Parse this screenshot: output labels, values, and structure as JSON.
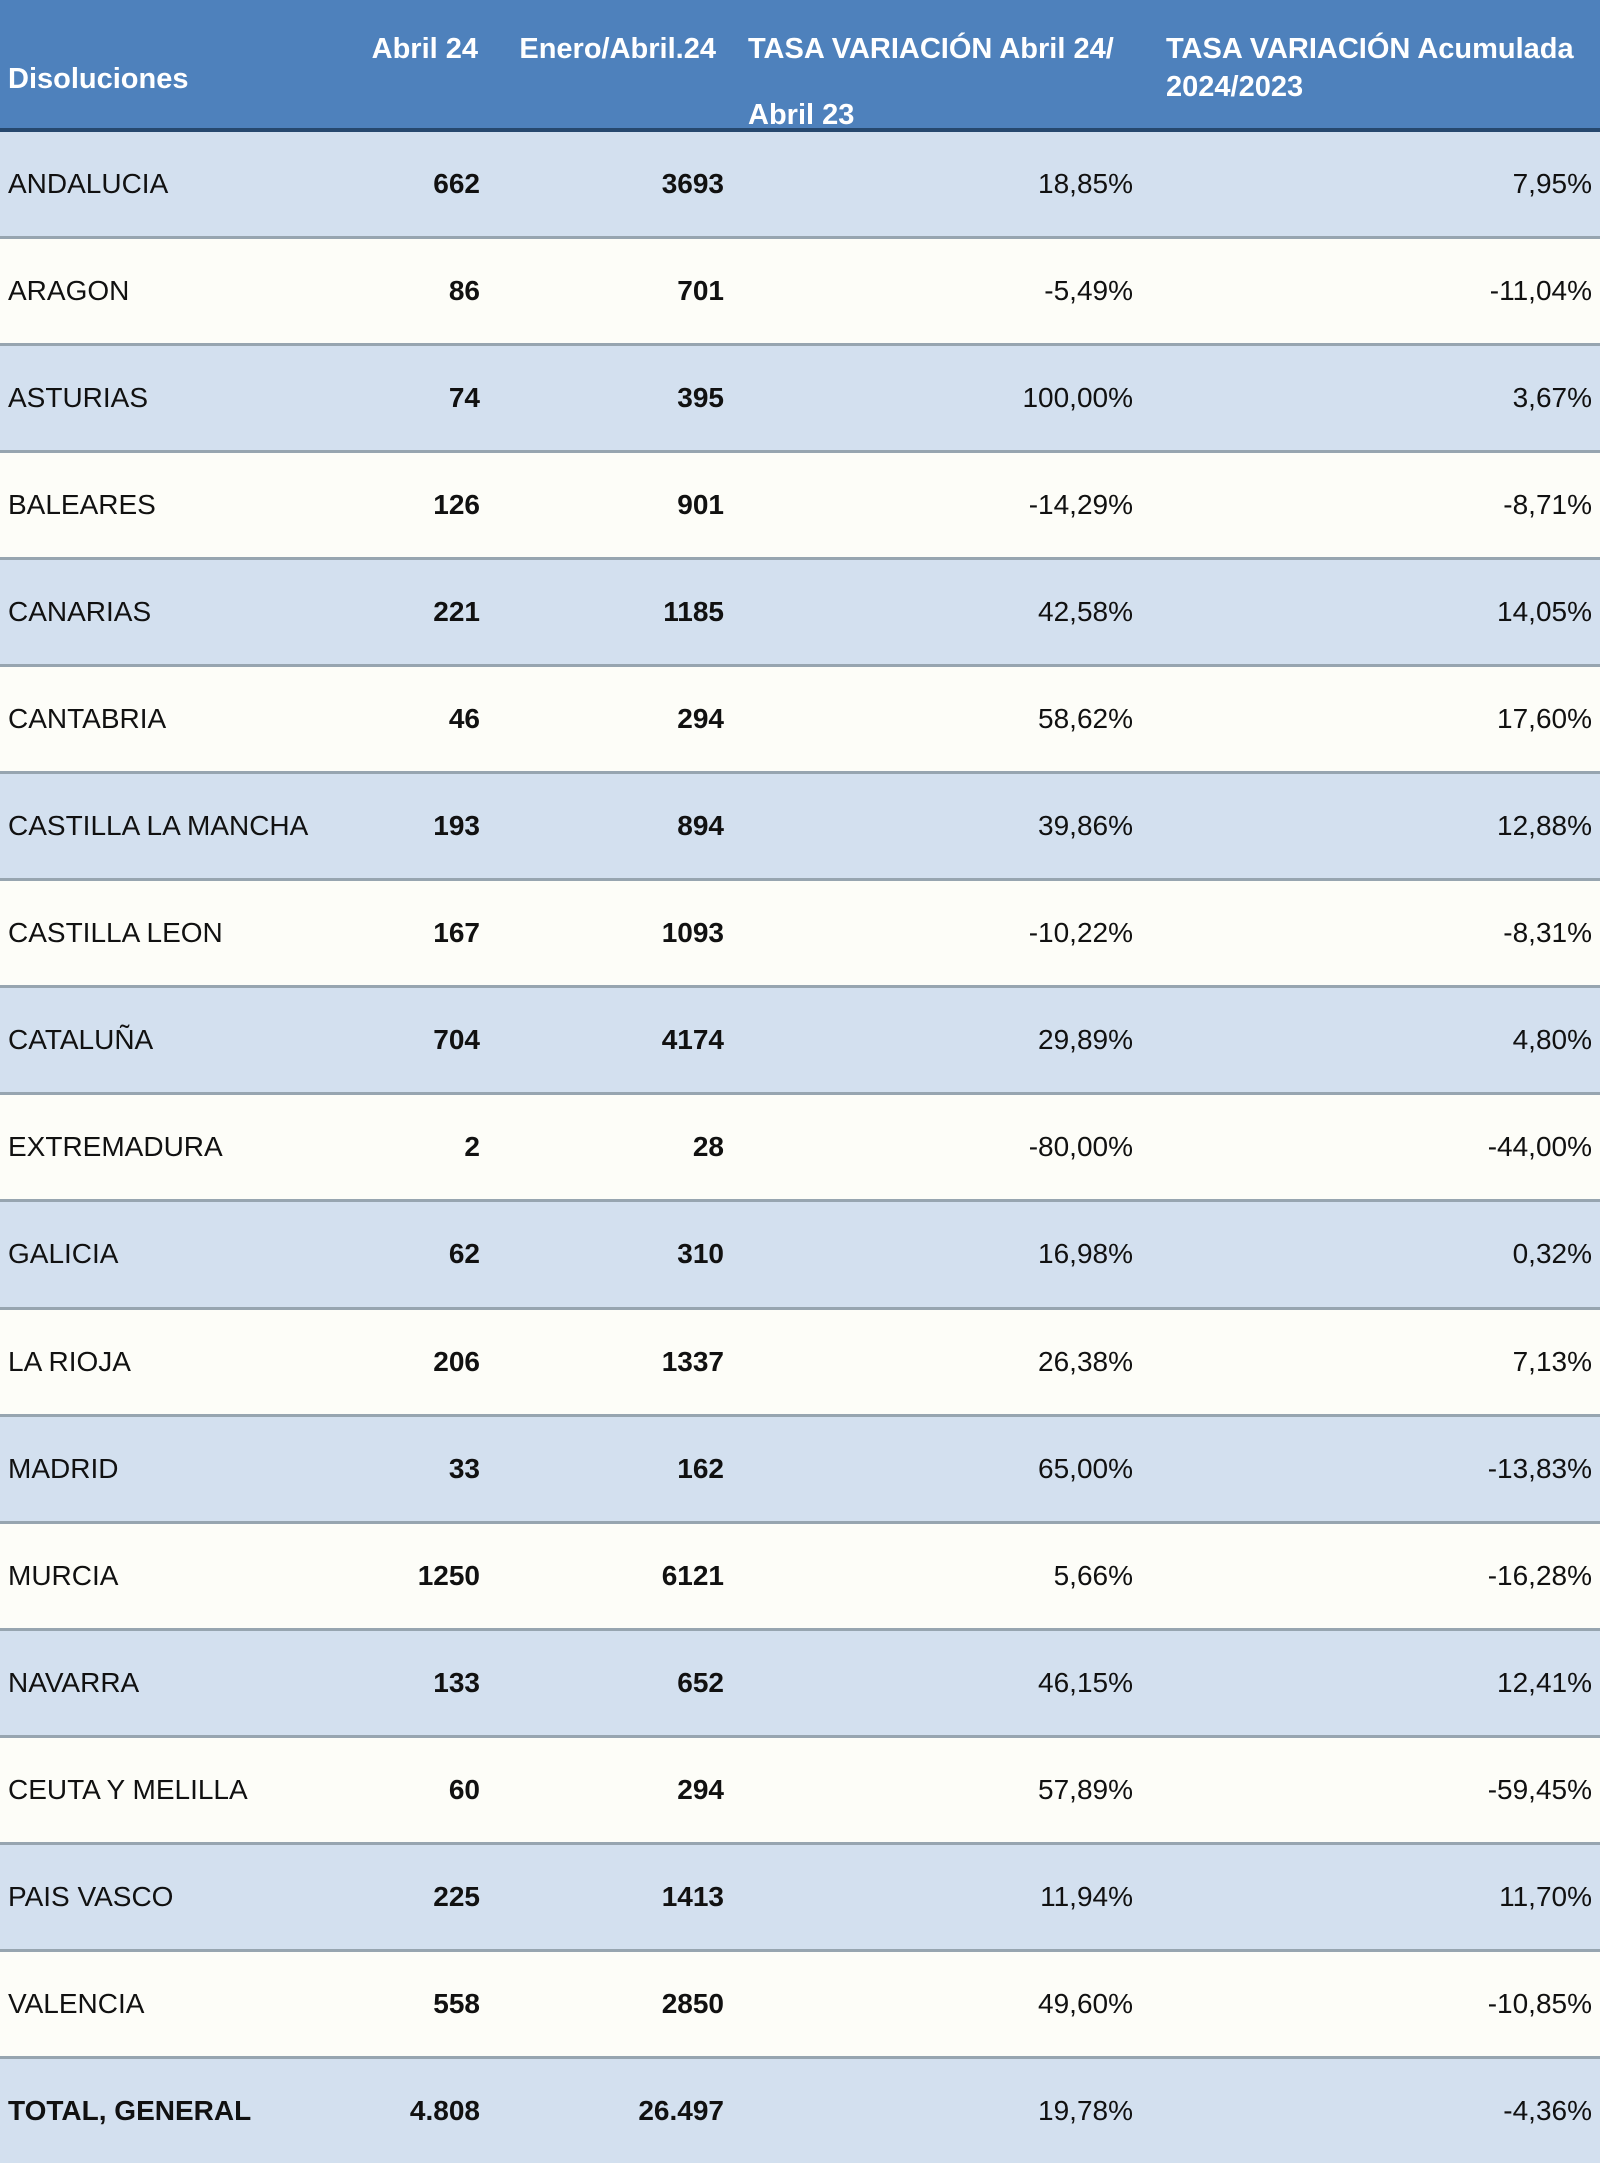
{
  "title": "Disoluciones",
  "header": {
    "col1": "Disoluciones",
    "col2": "Abril 24",
    "col3": "Enero/Abril.24",
    "col4_line1": "TASA VARIACIÓN Abril 24/",
    "col4_line2": "Abril 23",
    "col5_line1": "TASA VARIACIÓN Acumulada",
    "col5_line2": "2024/2023"
  },
  "colors": {
    "header_bg": "#4E81BC",
    "header_text": "#FFFFFF",
    "header_border": "#26486E",
    "alt_row_bg": "#D3E0EF",
    "row_bg": "#FDFDF8",
    "row_border": "#97A5B0",
    "text": "#111111"
  },
  "chart_data": {
    "type": "table",
    "title": "Disoluciones",
    "columns": [
      "Disoluciones",
      "Abril 24",
      "Enero/Abril.24",
      "TASA VARIACIÓN Abril 24/ Abril 23",
      "TASA VARIACIÓN Acumulada 2024/2023"
    ],
    "rows": [
      [
        "ANDALUCIA",
        "662",
        "3693",
        "18,85%",
        "7,95%"
      ],
      [
        "ARAGON",
        "86",
        "701",
        "-5,49%",
        "-11,04%"
      ],
      [
        "ASTURIAS",
        "74",
        "395",
        "100,00%",
        "3,67%"
      ],
      [
        "BALEARES",
        "126",
        "901",
        "-14,29%",
        "-8,71%"
      ],
      [
        "CANARIAS",
        "221",
        "1185",
        "42,58%",
        "14,05%"
      ],
      [
        "CANTABRIA",
        "46",
        "294",
        "58,62%",
        "17,60%"
      ],
      [
        "CASTILLA LA MANCHA",
        "193",
        "894",
        "39,86%",
        "12,88%"
      ],
      [
        "CASTILLA LEON",
        "167",
        "1093",
        "-10,22%",
        "-8,31%"
      ],
      [
        "CATALUÑA",
        "704",
        "4174",
        "29,89%",
        "4,80%"
      ],
      [
        "EXTREMADURA",
        "2",
        "28",
        "-80,00%",
        "-44,00%"
      ],
      [
        "GALICIA",
        "62",
        "310",
        "16,98%",
        "0,32%"
      ],
      [
        "LA RIOJA",
        "206",
        "1337",
        "26,38%",
        "7,13%"
      ],
      [
        "MADRID",
        "33",
        "162",
        "65,00%",
        "-13,83%"
      ],
      [
        "MURCIA",
        "1250",
        "6121",
        "5,66%",
        "-16,28%"
      ],
      [
        "NAVARRA",
        "133",
        "652",
        "46,15%",
        "12,41%"
      ],
      [
        "CEUTA Y MELILLA",
        "60",
        "294",
        "57,89%",
        "-59,45%"
      ],
      [
        "PAIS VASCO",
        "225",
        "1413",
        "11,94%",
        "11,70%"
      ],
      [
        "VALENCIA",
        "558",
        "2850",
        "49,60%",
        "-10,85%"
      ],
      [
        "TOTAL, GENERAL",
        "4.808",
        "26.497",
        "19,78%",
        "-4,36%"
      ]
    ]
  }
}
